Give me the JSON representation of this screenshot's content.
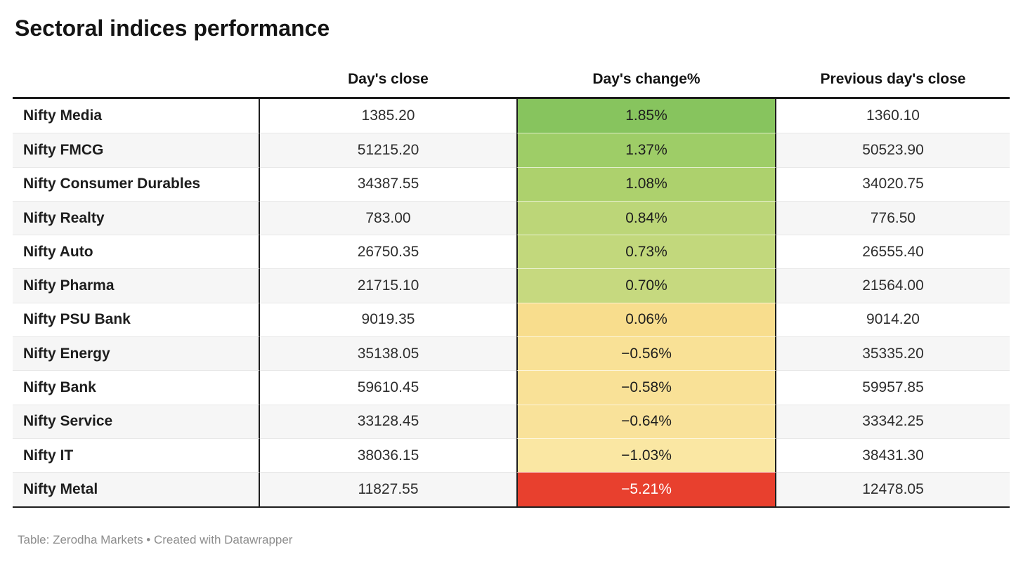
{
  "title": "Sectoral indices performance",
  "columns": {
    "index": "",
    "close": "Day's close",
    "change": "Day's change%",
    "prev": "Previous day's close"
  },
  "rows": [
    {
      "name": "Nifty Media",
      "close": "1385.20",
      "change": "1.85%",
      "prev": "1360.10",
      "bg": "#87c45e",
      "fg": "#1d1d1d"
    },
    {
      "name": "Nifty FMCG",
      "close": "51215.20",
      "change": "1.37%",
      "prev": "50523.90",
      "bg": "#9ecd67",
      "fg": "#1d1d1d"
    },
    {
      "name": "Nifty Consumer Durables",
      "close": "34387.55",
      "change": "1.08%",
      "prev": "34020.75",
      "bg": "#add16d",
      "fg": "#1d1d1d"
    },
    {
      "name": "Nifty Realty",
      "close": "783.00",
      "change": "0.84%",
      "prev": "776.50",
      "bg": "#bcd678",
      "fg": "#1d1d1d"
    },
    {
      "name": "Nifty Auto",
      "close": "26750.35",
      "change": "0.73%",
      "prev": "26555.40",
      "bg": "#c2d87c",
      "fg": "#1d1d1d"
    },
    {
      "name": "Nifty Pharma",
      "close": "21715.10",
      "change": "0.70%",
      "prev": "21564.00",
      "bg": "#c6d97f",
      "fg": "#1d1d1d"
    },
    {
      "name": "Nifty PSU Bank",
      "close": "9019.35",
      "change": "0.06%",
      "prev": "9014.20",
      "bg": "#f8dd8d",
      "fg": "#1d1d1d"
    },
    {
      "name": "Nifty Energy",
      "close": "35138.05",
      "change": "−0.56%",
      "prev": "35335.20",
      "bg": "#f9e196",
      "fg": "#1d1d1d"
    },
    {
      "name": "Nifty Bank",
      "close": "59610.45",
      "change": "−0.58%",
      "prev": "59957.85",
      "bg": "#f9e197",
      "fg": "#1d1d1d"
    },
    {
      "name": "Nifty Service",
      "close": "33128.45",
      "change": "−0.64%",
      "prev": "33342.25",
      "bg": "#f9e29a",
      "fg": "#1d1d1d"
    },
    {
      "name": "Nifty IT",
      "close": "38036.15",
      "change": "−1.03%",
      "prev": "38431.30",
      "bg": "#fae7a3",
      "fg": "#1d1d1d"
    },
    {
      "name": "Nifty Metal",
      "close": "11827.55",
      "change": "−5.21%",
      "prev": "12478.05",
      "bg": "#e8402e",
      "fg": "#ffffff"
    }
  ],
  "footer": "Table: Zerodha Markets • Created with Datawrapper",
  "colors": {
    "positive_max_green": "#87c45e",
    "neutral_yellow": "#f9e196",
    "negative_min_red": "#e8402e",
    "row_alt_background": "#f6f6f6",
    "rule_black": "#1d1d1d",
    "footer_gray": "#8e8e8e"
  },
  "chart_data": {
    "type": "table",
    "title": "Sectoral indices performance",
    "categories": [
      "Nifty Media",
      "Nifty FMCG",
      "Nifty Consumer Durables",
      "Nifty Realty",
      "Nifty Auto",
      "Nifty Pharma",
      "Nifty PSU Bank",
      "Nifty Energy",
      "Nifty Bank",
      "Nifty Service",
      "Nifty IT",
      "Nifty Metal"
    ],
    "series": [
      {
        "name": "Day's close",
        "values": [
          1385.2,
          51215.2,
          34387.55,
          783.0,
          26750.35,
          21715.1,
          9019.35,
          35138.05,
          59610.45,
          33128.45,
          38036.15,
          11827.55
        ]
      },
      {
        "name": "Day's change%",
        "values": [
          1.85,
          1.37,
          1.08,
          0.84,
          0.73,
          0.7,
          0.06,
          -0.56,
          -0.58,
          -0.64,
          -1.03,
          -5.21
        ]
      },
      {
        "name": "Previous day's close",
        "values": [
          1360.1,
          50523.9,
          34020.75,
          776.5,
          26555.4,
          21564.0,
          9014.2,
          35335.2,
          59957.85,
          33342.25,
          38431.3,
          12478.05
        ]
      }
    ],
    "layout_hints": {
      "heatmap_column": "Day's change%",
      "heatmap_scale": "red-yellow-green",
      "heatmap_range": [
        -5.21,
        1.85
      ],
      "alternating_rows": true
    },
    "footer": "Table: Zerodha Markets • Created with Datawrapper"
  }
}
